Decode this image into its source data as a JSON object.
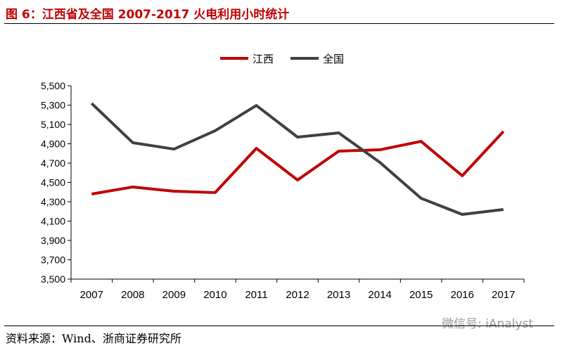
{
  "title": "图 6：江西省及全国 2007-2017 火电利用小时统计",
  "source": "资料来源：Wind、浙商证券研究所",
  "watermark": "微信号: iAnalyst",
  "chart_data": {
    "type": "line",
    "title": "",
    "xlabel": "",
    "ylabel": "",
    "categories": [
      "2007",
      "2008",
      "2009",
      "2010",
      "2011",
      "2012",
      "2013",
      "2014",
      "2015",
      "2016",
      "2017"
    ],
    "ylim": [
      3500,
      5500
    ],
    "yticks": [
      3500,
      3700,
      3900,
      4100,
      4300,
      4500,
      4700,
      4900,
      5100,
      5300,
      5500
    ],
    "ytick_labels": [
      "3,500",
      "3,700",
      "3,900",
      "4,100",
      "4,300",
      "4,500",
      "4,700",
      "4,900",
      "5,100",
      "5,300",
      "5,500"
    ],
    "grid": false,
    "legend_position": "top-center",
    "series": [
      {
        "name": "江西",
        "color": "#c00000",
        "values": [
          4380,
          4453,
          4409,
          4395,
          4853,
          4525,
          4824,
          4838,
          4925,
          4569,
          5027
        ]
      },
      {
        "name": "全国",
        "color": "#404040",
        "values": [
          5318,
          4911,
          4845,
          5035,
          5296,
          4969,
          5013,
          4707,
          4336,
          4169,
          4220
        ]
      }
    ]
  }
}
